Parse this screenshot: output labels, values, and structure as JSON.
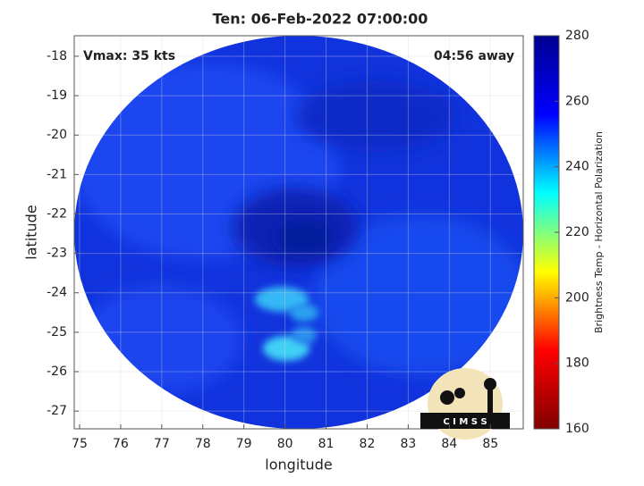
{
  "chart_data": {
    "type": "swath",
    "title": "Ten: 06-Feb-2022 07:00:00",
    "annotations": [
      "Vmax: 35 kts",
      "04:56 away"
    ],
    "xlabel": "longitude",
    "ylabel": "latitude",
    "xlim": [
      74.87,
      85.8
    ],
    "xticks": [
      75,
      76,
      77,
      78,
      79,
      80,
      81,
      82,
      83,
      84,
      85
    ],
    "ylim": [
      -27.45,
      -17.48
    ],
    "yticks": [
      -18,
      -19,
      -20,
      -21,
      -22,
      -23,
      -24,
      -25,
      -26,
      -27
    ],
    "grid": true,
    "colorbar": {
      "label": "Brightness Temp - Horizontal Polarization",
      "lim": [
        160,
        280
      ],
      "ticks": [
        160,
        180,
        200,
        220,
        240,
        260,
        280
      ],
      "colormap": [
        "#800000",
        "#ff0000",
        "#ffff00",
        "#00ffff",
        "#0000ff",
        "#00008f"
      ]
    },
    "logo": "C I M S S"
  }
}
